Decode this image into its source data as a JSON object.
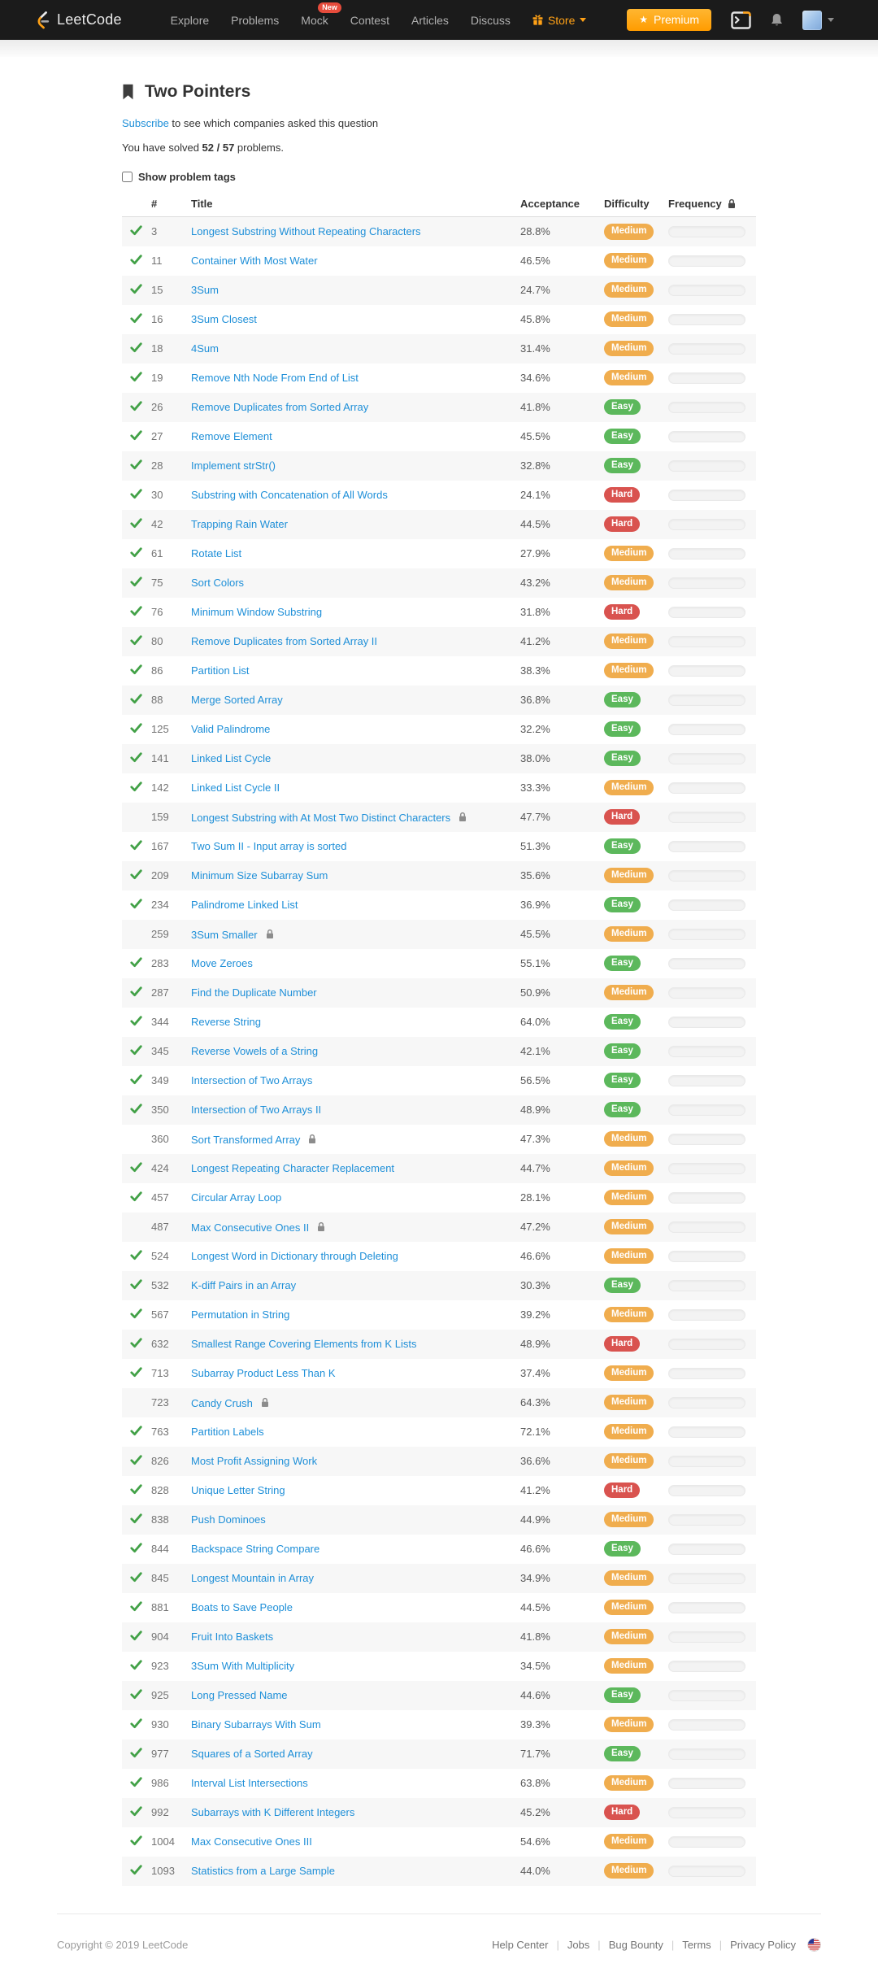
{
  "navbar": {
    "brand": "LeetCode",
    "items": [
      {
        "label": "Explore"
      },
      {
        "label": "Problems"
      },
      {
        "label": "Mock",
        "badge": "New"
      },
      {
        "label": "Contest"
      },
      {
        "label": "Articles"
      },
      {
        "label": "Discuss"
      },
      {
        "label": "Store",
        "accent": true,
        "gift_icon": true,
        "caret": true
      }
    ],
    "premium_label": "Premium"
  },
  "page": {
    "title": "Two Pointers",
    "subscribe_link": "Subscribe",
    "subscribe_rest": " to see which companies asked this question",
    "solved_prefix": "You have solved ",
    "solved_count": "52 / 57",
    "solved_suffix": " problems.",
    "show_tags_label": "Show problem tags"
  },
  "table": {
    "headers": {
      "number": "#",
      "title": "Title",
      "acceptance": "Acceptance",
      "difficulty": "Difficulty",
      "frequency": "Frequency"
    },
    "difficulty_colors": {
      "Easy": "#5cb85c",
      "Medium": "#f0ad4e",
      "Hard": "#d9534f"
    },
    "rows": [
      {
        "solved": true,
        "number": "3",
        "title": "Longest Substring Without Repeating Characters",
        "locked": false,
        "acceptance": "28.8%",
        "difficulty": "Medium"
      },
      {
        "solved": true,
        "number": "11",
        "title": "Container With Most Water",
        "locked": false,
        "acceptance": "46.5%",
        "difficulty": "Medium"
      },
      {
        "solved": true,
        "number": "15",
        "title": "3Sum",
        "locked": false,
        "acceptance": "24.7%",
        "difficulty": "Medium"
      },
      {
        "solved": true,
        "number": "16",
        "title": "3Sum Closest",
        "locked": false,
        "acceptance": "45.8%",
        "difficulty": "Medium"
      },
      {
        "solved": true,
        "number": "18",
        "title": "4Sum",
        "locked": false,
        "acceptance": "31.4%",
        "difficulty": "Medium"
      },
      {
        "solved": true,
        "number": "19",
        "title": "Remove Nth Node From End of List",
        "locked": false,
        "acceptance": "34.6%",
        "difficulty": "Medium"
      },
      {
        "solved": true,
        "number": "26",
        "title": "Remove Duplicates from Sorted Array",
        "locked": false,
        "acceptance": "41.8%",
        "difficulty": "Easy"
      },
      {
        "solved": true,
        "number": "27",
        "title": "Remove Element",
        "locked": false,
        "acceptance": "45.5%",
        "difficulty": "Easy"
      },
      {
        "solved": true,
        "number": "28",
        "title": "Implement strStr()",
        "locked": false,
        "acceptance": "32.8%",
        "difficulty": "Easy"
      },
      {
        "solved": true,
        "number": "30",
        "title": "Substring with Concatenation of All Words",
        "locked": false,
        "acceptance": "24.1%",
        "difficulty": "Hard"
      },
      {
        "solved": true,
        "number": "42",
        "title": "Trapping Rain Water",
        "locked": false,
        "acceptance": "44.5%",
        "difficulty": "Hard"
      },
      {
        "solved": true,
        "number": "61",
        "title": "Rotate List",
        "locked": false,
        "acceptance": "27.9%",
        "difficulty": "Medium"
      },
      {
        "solved": true,
        "number": "75",
        "title": "Sort Colors",
        "locked": false,
        "acceptance": "43.2%",
        "difficulty": "Medium"
      },
      {
        "solved": true,
        "number": "76",
        "title": "Minimum Window Substring",
        "locked": false,
        "acceptance": "31.8%",
        "difficulty": "Hard"
      },
      {
        "solved": true,
        "number": "80",
        "title": "Remove Duplicates from Sorted Array II",
        "locked": false,
        "acceptance": "41.2%",
        "difficulty": "Medium"
      },
      {
        "solved": true,
        "number": "86",
        "title": "Partition List",
        "locked": false,
        "acceptance": "38.3%",
        "difficulty": "Medium"
      },
      {
        "solved": true,
        "number": "88",
        "title": "Merge Sorted Array",
        "locked": false,
        "acceptance": "36.8%",
        "difficulty": "Easy"
      },
      {
        "solved": true,
        "number": "125",
        "title": "Valid Palindrome",
        "locked": false,
        "acceptance": "32.2%",
        "difficulty": "Easy"
      },
      {
        "solved": true,
        "number": "141",
        "title": "Linked List Cycle",
        "locked": false,
        "acceptance": "38.0%",
        "difficulty": "Easy"
      },
      {
        "solved": true,
        "number": "142",
        "title": "Linked List Cycle II",
        "locked": false,
        "acceptance": "33.3%",
        "difficulty": "Medium"
      },
      {
        "solved": false,
        "number": "159",
        "title": "Longest Substring with At Most Two Distinct Characters",
        "locked": true,
        "acceptance": "47.7%",
        "difficulty": "Hard"
      },
      {
        "solved": true,
        "number": "167",
        "title": "Two Sum II - Input array is sorted",
        "locked": false,
        "acceptance": "51.3%",
        "difficulty": "Easy"
      },
      {
        "solved": true,
        "number": "209",
        "title": "Minimum Size Subarray Sum",
        "locked": false,
        "acceptance": "35.6%",
        "difficulty": "Medium"
      },
      {
        "solved": true,
        "number": "234",
        "title": "Palindrome Linked List",
        "locked": false,
        "acceptance": "36.9%",
        "difficulty": "Easy"
      },
      {
        "solved": false,
        "number": "259",
        "title": "3Sum Smaller",
        "locked": true,
        "acceptance": "45.5%",
        "difficulty": "Medium"
      },
      {
        "solved": true,
        "number": "283",
        "title": "Move Zeroes",
        "locked": false,
        "acceptance": "55.1%",
        "difficulty": "Easy"
      },
      {
        "solved": true,
        "number": "287",
        "title": "Find the Duplicate Number",
        "locked": false,
        "acceptance": "50.9%",
        "difficulty": "Medium"
      },
      {
        "solved": true,
        "number": "344",
        "title": "Reverse String",
        "locked": false,
        "acceptance": "64.0%",
        "difficulty": "Easy"
      },
      {
        "solved": true,
        "number": "345",
        "title": "Reverse Vowels of a String",
        "locked": false,
        "acceptance": "42.1%",
        "difficulty": "Easy"
      },
      {
        "solved": true,
        "number": "349",
        "title": "Intersection of Two Arrays",
        "locked": false,
        "acceptance": "56.5%",
        "difficulty": "Easy"
      },
      {
        "solved": true,
        "number": "350",
        "title": "Intersection of Two Arrays II",
        "locked": false,
        "acceptance": "48.9%",
        "difficulty": "Easy"
      },
      {
        "solved": false,
        "number": "360",
        "title": "Sort Transformed Array",
        "locked": true,
        "acceptance": "47.3%",
        "difficulty": "Medium"
      },
      {
        "solved": true,
        "number": "424",
        "title": "Longest Repeating Character Replacement",
        "locked": false,
        "acceptance": "44.7%",
        "difficulty": "Medium"
      },
      {
        "solved": true,
        "number": "457",
        "title": "Circular Array Loop",
        "locked": false,
        "acceptance": "28.1%",
        "difficulty": "Medium"
      },
      {
        "solved": false,
        "number": "487",
        "title": "Max Consecutive Ones II",
        "locked": true,
        "acceptance": "47.2%",
        "difficulty": "Medium"
      },
      {
        "solved": true,
        "number": "524",
        "title": "Longest Word in Dictionary through Deleting",
        "locked": false,
        "acceptance": "46.6%",
        "difficulty": "Medium"
      },
      {
        "solved": true,
        "number": "532",
        "title": "K-diff Pairs in an Array",
        "locked": false,
        "acceptance": "30.3%",
        "difficulty": "Easy"
      },
      {
        "solved": true,
        "number": "567",
        "title": "Permutation in String",
        "locked": false,
        "acceptance": "39.2%",
        "difficulty": "Medium"
      },
      {
        "solved": true,
        "number": "632",
        "title": "Smallest Range Covering Elements from K Lists",
        "locked": false,
        "acceptance": "48.9%",
        "difficulty": "Hard"
      },
      {
        "solved": true,
        "number": "713",
        "title": "Subarray Product Less Than K",
        "locked": false,
        "acceptance": "37.4%",
        "difficulty": "Medium"
      },
      {
        "solved": false,
        "number": "723",
        "title": "Candy Crush",
        "locked": true,
        "acceptance": "64.3%",
        "difficulty": "Medium"
      },
      {
        "solved": true,
        "number": "763",
        "title": "Partition Labels",
        "locked": false,
        "acceptance": "72.1%",
        "difficulty": "Medium"
      },
      {
        "solved": true,
        "number": "826",
        "title": "Most Profit Assigning Work",
        "locked": false,
        "acceptance": "36.6%",
        "difficulty": "Medium"
      },
      {
        "solved": true,
        "number": "828",
        "title": "Unique Letter String",
        "locked": false,
        "acceptance": "41.2%",
        "difficulty": "Hard"
      },
      {
        "solved": true,
        "number": "838",
        "title": "Push Dominoes",
        "locked": false,
        "acceptance": "44.9%",
        "difficulty": "Medium"
      },
      {
        "solved": true,
        "number": "844",
        "title": "Backspace String Compare",
        "locked": false,
        "acceptance": "46.6%",
        "difficulty": "Easy"
      },
      {
        "solved": true,
        "number": "845",
        "title": "Longest Mountain in Array",
        "locked": false,
        "acceptance": "34.9%",
        "difficulty": "Medium"
      },
      {
        "solved": true,
        "number": "881",
        "title": "Boats to Save People",
        "locked": false,
        "acceptance": "44.5%",
        "difficulty": "Medium"
      },
      {
        "solved": true,
        "number": "904",
        "title": "Fruit Into Baskets",
        "locked": false,
        "acceptance": "41.8%",
        "difficulty": "Medium"
      },
      {
        "solved": true,
        "number": "923",
        "title": "3Sum With Multiplicity",
        "locked": false,
        "acceptance": "34.5%",
        "difficulty": "Medium"
      },
      {
        "solved": true,
        "number": "925",
        "title": "Long Pressed Name",
        "locked": false,
        "acceptance": "44.6%",
        "difficulty": "Easy"
      },
      {
        "solved": true,
        "number": "930",
        "title": "Binary Subarrays With Sum",
        "locked": false,
        "acceptance": "39.3%",
        "difficulty": "Medium"
      },
      {
        "solved": true,
        "number": "977",
        "title": "Squares of a Sorted Array",
        "locked": false,
        "acceptance": "71.7%",
        "difficulty": "Easy"
      },
      {
        "solved": true,
        "number": "986",
        "title": "Interval List Intersections",
        "locked": false,
        "acceptance": "63.8%",
        "difficulty": "Medium"
      },
      {
        "solved": true,
        "number": "992",
        "title": "Subarrays with K Different Integers",
        "locked": false,
        "acceptance": "45.2%",
        "difficulty": "Hard"
      },
      {
        "solved": true,
        "number": "1004",
        "title": "Max Consecutive Ones III",
        "locked": false,
        "acceptance": "54.6%",
        "difficulty": "Medium"
      },
      {
        "solved": true,
        "number": "1093",
        "title": "Statistics from a Large Sample",
        "locked": false,
        "acceptance": "44.0%",
        "difficulty": "Medium"
      }
    ]
  },
  "footer": {
    "copyright": "Copyright © 2019 LeetCode",
    "links": [
      "Help Center",
      "Jobs",
      "Bug Bounty",
      "Terms",
      "Privacy Policy"
    ]
  },
  "colors": {
    "navbar_bg": "#1b1b1b",
    "accent_orange": "#ffa116",
    "link_blue": "#1e8fd8",
    "check_green": "#42a147",
    "new_badge_red": "#e74c3c",
    "easy": "#5cb85c",
    "medium": "#f0ad4e",
    "hard": "#d9534f"
  }
}
